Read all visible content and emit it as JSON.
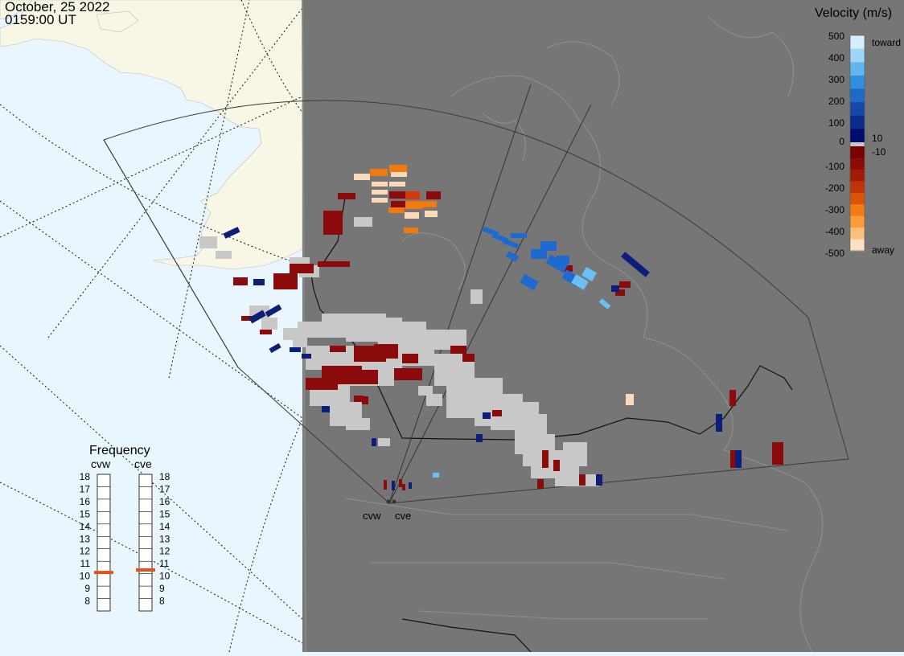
{
  "header": {
    "date": "October, 25 2022",
    "time": "0159:00 UT"
  },
  "colors": {
    "ocean": "#eaf6fd",
    "land_day": "#f8f7e6",
    "night": "#767676",
    "night_border": "#9a9a9a",
    "ground_scatter": "#c8c8c8",
    "fov_outline": "#333333"
  },
  "velocity_scale": {
    "title": "Velocity (m/s)",
    "ticks": [
      "500",
      "400",
      "300",
      "200",
      "100",
      "10",
      "0",
      "-10",
      "-100",
      "-200",
      "-300",
      "-400",
      "-500"
    ],
    "toward_label": "toward",
    "away_label": "away",
    "colors_toward": [
      "#d4eefc",
      "#9fd6f7",
      "#61b6ef",
      "#2f8fe0",
      "#1f69c8",
      "#1548a8",
      "#0b2c8a",
      "#030c6e"
    ],
    "colors_away": [
      "#7a0000",
      "#8b0b06",
      "#a31a06",
      "#c23208",
      "#dd5309",
      "#f27c12",
      "#fa9c3a",
      "#fcc07a",
      "#fde0c2"
    ]
  },
  "frequency": {
    "title": "Frequency",
    "radars": [
      "cvw",
      "cve"
    ],
    "ticks": [
      "18",
      "17",
      "16",
      "15",
      "14",
      "13",
      "12",
      "11",
      "10",
      "9",
      "8"
    ],
    "current_mhz": [
      10.6,
      10.8
    ],
    "marker_color": "#e8501a"
  },
  "radar_sites": [
    {
      "code": "cvw",
      "label": "cvw"
    },
    {
      "code": "cve",
      "label": "cve"
    }
  ]
}
